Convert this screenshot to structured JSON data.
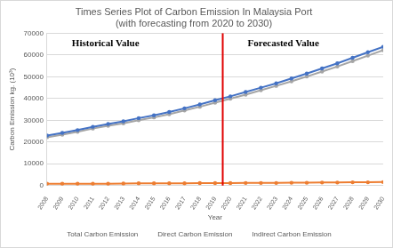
{
  "chart_data": {
    "type": "line",
    "title": "Times Series Plot of Carbon Emission In Malaysia Port",
    "subtitle": "(with forecasting from 2020 to 2030)",
    "x_label": "Year",
    "y_label": "Carbon Emission kg. (10³)",
    "annotations": [
      {
        "text": "Historical Value"
      },
      {
        "text": "Forecasted Value"
      }
    ],
    "forecast_start": "2020",
    "categories": [
      "2008",
      "2009",
      "2010",
      "2011",
      "2012",
      "2013",
      "2014",
      "2015",
      "2016",
      "2017",
      "2018",
      "2019",
      "2020",
      "2021",
      "2022",
      "2023",
      "2024",
      "2025",
      "2026",
      "2027",
      "2028",
      "2029",
      "2030"
    ],
    "series": [
      {
        "name": "Total Carbon Emission",
        "color": "#4472c4",
        "marker": "circle",
        "values": [
          23000,
          24200,
          25500,
          27000,
          28300,
          29500,
          31000,
          32300,
          33800,
          35500,
          37300,
          39200,
          41000,
          43000,
          45000,
          47000,
          49200,
          51500,
          53800,
          56200,
          58700,
          61300,
          63800
        ]
      },
      {
        "name": "Direct Carbon Emission",
        "color": "#ed7d31",
        "marker": "circle",
        "values": [
          800,
          800,
          800,
          800,
          800,
          900,
          1000,
          1000,
          1000,
          1000,
          1100,
          1100,
          1100,
          1200,
          1200,
          1200,
          1300,
          1300,
          1400,
          1400,
          1500,
          1500,
          1600
        ]
      },
      {
        "name": "Indirect Carbon Emission",
        "color": "#a5a5a5",
        "marker": "circle",
        "values": [
          22200,
          23400,
          24700,
          26200,
          27500,
          28600,
          30000,
          31300,
          32800,
          34500,
          36200,
          38100,
          39900,
          41800,
          43800,
          45800,
          47900,
          50100,
          52400,
          54700,
          57200,
          59700,
          62200
        ]
      }
    ],
    "ylim": [
      0,
      70000
    ],
    "yticks": [
      0,
      10000,
      20000,
      30000,
      40000,
      50000,
      60000,
      70000
    ],
    "grid": true,
    "legend": "bottom"
  }
}
